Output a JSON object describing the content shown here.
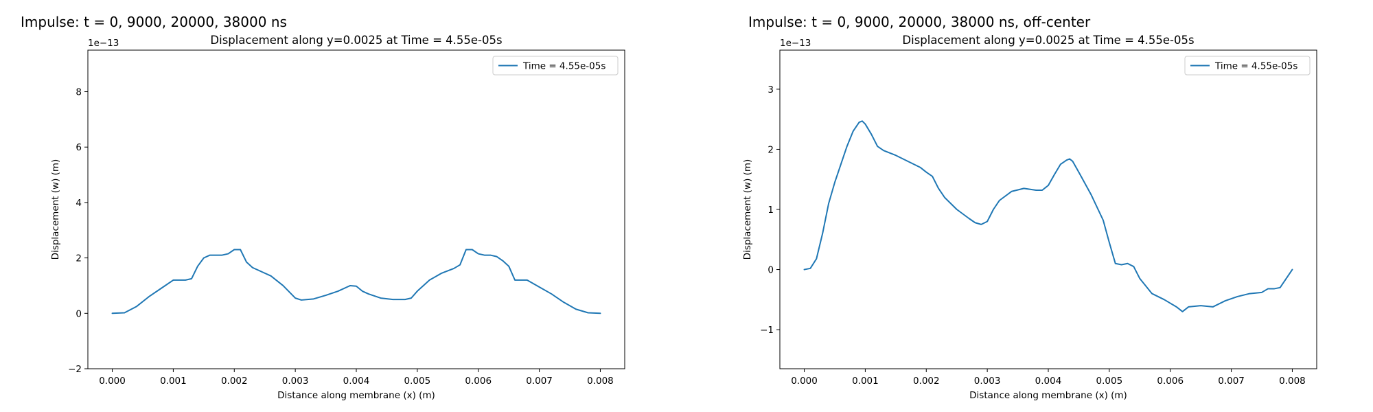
{
  "figure_titles": {
    "left": "Impulse: t = 0, 9000, 20000, 38000 ns",
    "right": "Impulse: t = 0, 9000, 20000, 38000 ns, off-center"
  },
  "colors": {
    "series": "#1f77b4",
    "axes": "#000000"
  },
  "chart_data": [
    {
      "type": "line",
      "title": "Displacement along y=0.0025 at Time = 4.55e-05s",
      "xlabel": "Distance along membrane (x) (m)",
      "ylabel": "Displacement (w) (m)",
      "offset_text": "1e−13",
      "xlim": [
        -0.0004,
        0.0084
      ],
      "ylim": [
        -2,
        9.5
      ],
      "xticks": [
        0.0,
        0.001,
        0.002,
        0.003,
        0.004,
        0.005,
        0.006,
        0.007,
        0.008
      ],
      "xtick_labels": [
        "0.000",
        "0.001",
        "0.002",
        "0.003",
        "0.004",
        "0.005",
        "0.006",
        "0.007",
        "0.008"
      ],
      "yticks": [
        -2,
        0,
        2,
        4,
        6,
        8
      ],
      "ytick_labels": [
        "−2",
        "0",
        "2",
        "4",
        "6",
        "8"
      ],
      "grid": false,
      "legend_position": "upper right",
      "series": [
        {
          "name": "Time = 4.55e-05s",
          "x": [
            0.0,
            0.0002,
            0.0004,
            0.0006,
            0.0008,
            0.001,
            0.0012,
            0.0013,
            0.0014,
            0.0015,
            0.0016,
            0.0017,
            0.0018,
            0.0019,
            0.002,
            0.0021,
            0.0022,
            0.0023,
            0.0024,
            0.0026,
            0.0028,
            0.003,
            0.0031,
            0.0032,
            0.0033,
            0.0035,
            0.0037,
            0.0039,
            0.004,
            0.0041,
            0.0042,
            0.0044,
            0.0046,
            0.0048,
            0.0049,
            0.005,
            0.0052,
            0.0054,
            0.0056,
            0.0057,
            0.0058,
            0.0059,
            0.006,
            0.0061,
            0.0062,
            0.0063,
            0.0064,
            0.0065,
            0.0066,
            0.0067,
            0.0068,
            0.007,
            0.0072,
            0.0074,
            0.0076,
            0.0078,
            0.008
          ],
          "y": [
            0.0,
            0.02,
            0.25,
            0.6,
            0.9,
            1.2,
            1.2,
            1.25,
            1.7,
            2.0,
            2.1,
            2.1,
            2.1,
            2.15,
            2.3,
            2.3,
            1.85,
            1.65,
            1.55,
            1.35,
            1.0,
            0.55,
            0.48,
            0.5,
            0.52,
            0.65,
            0.8,
            1.0,
            0.98,
            0.8,
            0.7,
            0.55,
            0.5,
            0.5,
            0.55,
            0.8,
            1.2,
            1.45,
            1.62,
            1.75,
            2.3,
            2.3,
            2.15,
            2.1,
            2.1,
            2.05,
            1.9,
            1.7,
            1.2,
            1.2,
            1.2,
            0.95,
            0.7,
            0.4,
            0.15,
            0.02,
            0.0
          ]
        }
      ]
    },
    {
      "type": "line",
      "title": "Displacement along y=0.0025 at Time = 4.55e-05s",
      "xlabel": "Distance along membrane (x) (m)",
      "ylabel": "Displacement (w) (m)",
      "offset_text": "1e−13",
      "xlim": [
        -0.0004,
        0.0084
      ],
      "ylim": [
        -1.65,
        3.65
      ],
      "xticks": [
        0.0,
        0.001,
        0.002,
        0.003,
        0.004,
        0.005,
        0.006,
        0.007,
        0.008
      ],
      "xtick_labels": [
        "0.000",
        "0.001",
        "0.002",
        "0.003",
        "0.004",
        "0.005",
        "0.006",
        "0.007",
        "0.008"
      ],
      "yticks": [
        -1,
        0,
        1,
        2,
        3
      ],
      "ytick_labels": [
        "−1",
        "0",
        "1",
        "2",
        "3"
      ],
      "grid": false,
      "legend_position": "upper right",
      "series": [
        {
          "name": "Time = 4.55e-05s",
          "x": [
            0.0,
            0.0001,
            0.0002,
            0.0003,
            0.0004,
            0.0005,
            0.0006,
            0.0007,
            0.0008,
            0.0009,
            0.00095,
            0.001,
            0.0011,
            0.0012,
            0.0013,
            0.0015,
            0.0017,
            0.0019,
            0.002,
            0.0021,
            0.0022,
            0.0023,
            0.0025,
            0.0027,
            0.0028,
            0.0029,
            0.003,
            0.0031,
            0.0032,
            0.0034,
            0.0036,
            0.0038,
            0.0039,
            0.004,
            0.0041,
            0.0042,
            0.0043,
            0.00435,
            0.0044,
            0.0045,
            0.0047,
            0.0049,
            0.005,
            0.0051,
            0.0052,
            0.0053,
            0.0054,
            0.0055,
            0.0057,
            0.0059,
            0.0061,
            0.0062,
            0.0063,
            0.0065,
            0.0067,
            0.0069,
            0.0071,
            0.0073,
            0.0075,
            0.0076,
            0.0077,
            0.0078,
            0.0079,
            0.008
          ],
          "y": [
            0.0,
            0.02,
            0.18,
            0.6,
            1.1,
            1.45,
            1.75,
            2.05,
            2.3,
            2.45,
            2.47,
            2.42,
            2.25,
            2.05,
            1.98,
            1.9,
            1.8,
            1.7,
            1.62,
            1.55,
            1.35,
            1.2,
            1.0,
            0.85,
            0.78,
            0.75,
            0.8,
            1.0,
            1.15,
            1.3,
            1.35,
            1.32,
            1.32,
            1.4,
            1.58,
            1.75,
            1.82,
            1.84,
            1.8,
            1.62,
            1.25,
            0.82,
            0.45,
            0.1,
            0.08,
            0.1,
            0.05,
            -0.15,
            -0.4,
            -0.5,
            -0.62,
            -0.7,
            -0.62,
            -0.6,
            -0.62,
            -0.52,
            -0.45,
            -0.4,
            -0.38,
            -0.32,
            -0.32,
            -0.3,
            -0.15,
            0.0
          ]
        }
      ]
    }
  ]
}
